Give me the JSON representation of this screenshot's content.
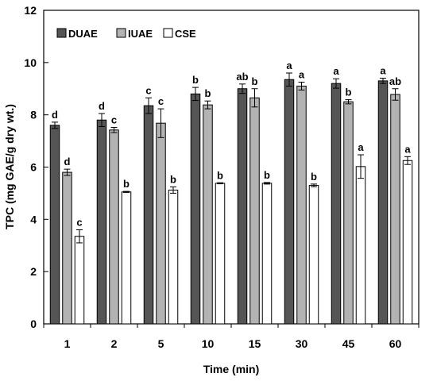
{
  "chart_data": {
    "type": "bar",
    "xlabel": "Time (min)",
    "ylabel": "TPC  (mg GAE/g dry wt.)",
    "ylim": [
      0,
      12
    ],
    "yticks": [
      0,
      2,
      4,
      6,
      8,
      10,
      12
    ],
    "categories": [
      "1",
      "2",
      "5",
      "10",
      "15",
      "30",
      "45",
      "60"
    ],
    "legend_position": "top-left",
    "series": [
      {
        "name": "DUAE",
        "color": "#555555",
        "values": [
          7.6,
          7.8,
          8.35,
          8.8,
          9.0,
          9.35,
          9.2,
          9.3
        ],
        "errors": [
          0.12,
          0.25,
          0.3,
          0.25,
          0.18,
          0.25,
          0.18,
          0.1
        ],
        "labels": [
          "d",
          "d",
          "c",
          "b",
          "ab",
          "a",
          "a",
          "a"
        ]
      },
      {
        "name": "IUAE",
        "color": "#b3b3b3",
        "values": [
          5.8,
          7.42,
          7.68,
          8.38,
          8.65,
          9.1,
          8.5,
          8.78
        ],
        "errors": [
          0.12,
          0.1,
          0.55,
          0.15,
          0.35,
          0.15,
          0.08,
          0.22
        ],
        "labels": [
          "d",
          "c",
          "c",
          "b",
          "b",
          "a",
          "b",
          "ab"
        ]
      },
      {
        "name": "CSE",
        "color": "#ffffff",
        "values": [
          3.35,
          5.05,
          5.12,
          5.38,
          5.38,
          5.3,
          6.02,
          6.25
        ],
        "errors": [
          0.25,
          0.02,
          0.12,
          0.02,
          0.03,
          0.05,
          0.45,
          0.15
        ],
        "labels": [
          "c",
          "b",
          "b",
          "b",
          "b",
          "b",
          "a",
          "a"
        ]
      }
    ]
  }
}
